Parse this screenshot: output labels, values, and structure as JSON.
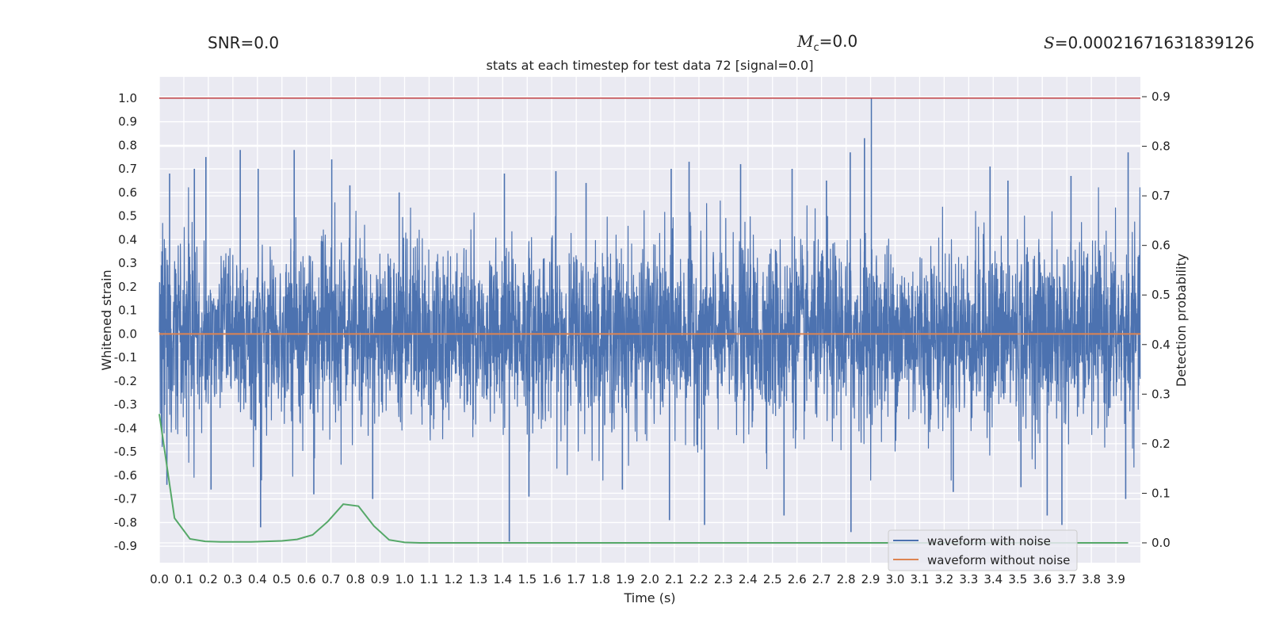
{
  "header": {
    "snr_label": "SNR=0.0",
    "mc_symbol": "M",
    "mc_subscript": "c",
    "mc_value": "=0.0",
    "s_symbol": "S",
    "s_value": "=0.00021671631839126"
  },
  "chart_data": {
    "type": "line",
    "title": "stats at each timestep for test data 72 [signal=0.0]",
    "xlabel": "Time (s)",
    "ylabel": "Whitened strain",
    "y2label": "Detection probability",
    "xlim": [
      0.0,
      4.0
    ],
    "ylim": [
      -0.97,
      1.09
    ],
    "y2lim": [
      -0.04,
      0.94
    ],
    "xticks": [
      "0.0",
      "0.1",
      "0.2",
      "0.3",
      "0.4",
      "0.5",
      "0.6",
      "0.7",
      "0.8",
      "0.9",
      "1.0",
      "1.1",
      "1.2",
      "1.3",
      "1.4",
      "1.5",
      "1.6",
      "1.7",
      "1.8",
      "1.9",
      "2.0",
      "2.1",
      "2.2",
      "2.3",
      "2.4",
      "2.5",
      "2.6",
      "2.7",
      "2.8",
      "2.9",
      "3.0",
      "3.1",
      "3.2",
      "3.3",
      "3.4",
      "3.5",
      "3.6",
      "3.7",
      "3.8",
      "3.9"
    ],
    "yticks": [
      "1.0",
      "0.9",
      "0.8",
      "0.7",
      "0.6",
      "0.5",
      "0.4",
      "0.3",
      "0.2",
      "0.1",
      "0.0",
      "-0.1",
      "-0.2",
      "-0.3",
      "-0.4",
      "-0.5",
      "-0.6",
      "-0.7",
      "-0.8",
      "-0.9"
    ],
    "y2ticks": [
      "0.9",
      "0.8",
      "0.7",
      "0.6",
      "0.5",
      "0.4",
      "0.3",
      "0.2",
      "0.1",
      "0.0"
    ],
    "threshold": {
      "value": 1.0,
      "color": "#c44e52"
    },
    "legend_position": "lower-right",
    "grid": true,
    "colors": {
      "noise": "#4c72b0",
      "clean": "#dd8452",
      "probability": "#55a868",
      "background": "#eaeaf2"
    },
    "series": [
      {
        "name": "waveform with noise",
        "axis": "left",
        "spikes": [
          [
            0.011,
            0.35
          ],
          [
            0.042,
            0.68
          ],
          [
            0.143,
            0.7
          ],
          [
            0.19,
            0.75
          ],
          [
            0.33,
            0.78
          ],
          [
            0.403,
            0.7
          ],
          [
            0.55,
            0.78
          ],
          [
            0.703,
            0.74
          ],
          [
            0.777,
            0.63
          ],
          [
            0.978,
            0.6
          ],
          [
            1.407,
            0.68
          ],
          [
            1.617,
            0.69
          ],
          [
            1.74,
            0.64
          ],
          [
            2.087,
            0.7
          ],
          [
            2.16,
            0.73
          ],
          [
            2.37,
            0.72
          ],
          [
            2.58,
            0.7
          ],
          [
            2.72,
            0.65
          ],
          [
            2.817,
            0.77
          ],
          [
            2.875,
            0.83
          ],
          [
            2.903,
            1.0
          ],
          [
            3.387,
            0.71
          ],
          [
            3.46,
            0.65
          ],
          [
            3.717,
            0.67
          ],
          [
            3.95,
            0.77
          ],
          [
            0.031,
            -0.64
          ],
          [
            0.211,
            -0.66
          ],
          [
            0.413,
            -0.82
          ],
          [
            0.63,
            -0.68
          ],
          [
            0.87,
            -0.7
          ],
          [
            1.427,
            -0.88
          ],
          [
            1.507,
            -0.69
          ],
          [
            1.888,
            -0.66
          ],
          [
            2.08,
            -0.79
          ],
          [
            2.223,
            -0.81
          ],
          [
            2.547,
            -0.77
          ],
          [
            2.82,
            -0.84
          ],
          [
            3.237,
            -0.67
          ],
          [
            3.513,
            -0.65
          ],
          [
            3.62,
            -0.77
          ],
          [
            3.68,
            -0.81
          ],
          [
            3.94,
            -0.7
          ]
        ]
      },
      {
        "name": "waveform without noise",
        "axis": "left",
        "x": [
          0.0,
          4.0
        ],
        "y": [
          0.0,
          0.0
        ]
      },
      {
        "name": "",
        "axis": "right",
        "x": [
          0.0,
          0.062,
          0.125,
          0.187,
          0.25,
          0.312,
          0.375,
          0.437,
          0.5,
          0.562,
          0.625,
          0.687,
          0.75,
          0.812,
          0.875,
          0.937,
          1.0,
          1.062,
          1.125,
          1.25,
          1.5,
          2.0,
          2.5,
          3.0,
          3.5,
          3.95
        ],
        "y": [
          0.26,
          0.05,
          0.008,
          0.003,
          0.002,
          0.002,
          0.002,
          0.003,
          0.004,
          0.007,
          0.016,
          0.043,
          0.078,
          0.074,
          0.034,
          0.006,
          0.001,
          0.0,
          0.0,
          0.0,
          0.0,
          0.0,
          0.0,
          0.0,
          0.0,
          0.0
        ]
      }
    ]
  }
}
